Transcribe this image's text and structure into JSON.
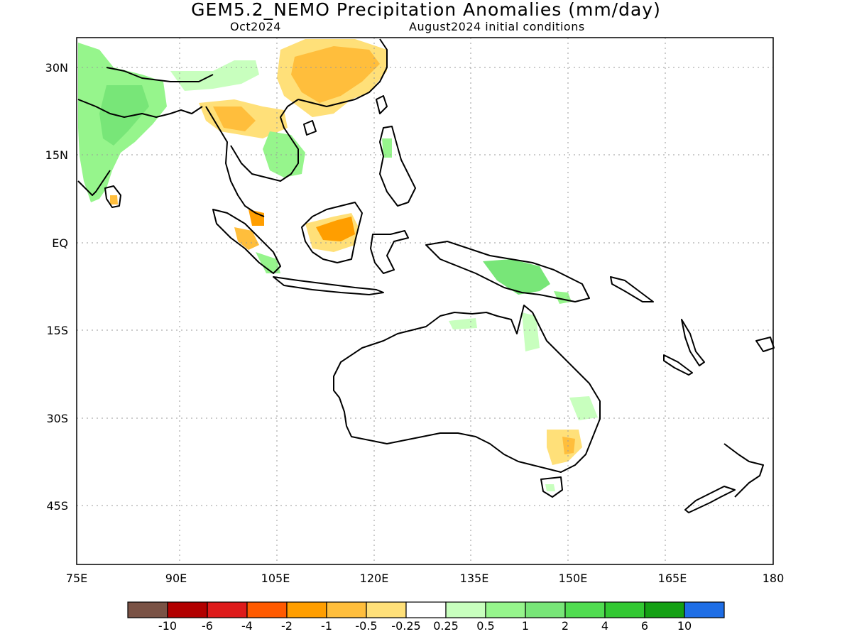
{
  "header": {
    "title": "GEM5.2_NEMO Precipitation Anomalies (mm/day)",
    "valid_month": "Oct2024",
    "init_conditions": "August2024 initial conditions"
  },
  "map": {
    "lat_labels": [
      "30N",
      "15N",
      "EQ",
      "15S",
      "30S",
      "45S"
    ],
    "lon_labels": [
      "75E",
      "90E",
      "105E",
      "120E",
      "135E",
      "150E",
      "165E",
      "180"
    ],
    "gridlines": true
  },
  "colorbar": {
    "labels": [
      "-10",
      "-6",
      "-4",
      "-2",
      "-1",
      "-0.5",
      "-0.25",
      "0.25",
      "0.5",
      "1",
      "2",
      "4",
      "6",
      "10"
    ],
    "colors": [
      "#7a5245",
      "#b20000",
      "#de1a1a",
      "#ff5a00",
      "#ff9e00",
      "#ffbe3c",
      "#ffe079",
      "#ffffff",
      "#c8ffbe",
      "#96f58c",
      "#78e678",
      "#50dc50",
      "#32c832",
      "#14a014",
      "#1e6ee6"
    ]
  },
  "palette": {
    "dry_light": "#ffe079",
    "dry_mid": "#ffbe3c",
    "dry_strong": "#ff9e00",
    "wet_light": "#c8ffbe",
    "wet_mid": "#96f58c",
    "wet_strong": "#78e678"
  }
}
